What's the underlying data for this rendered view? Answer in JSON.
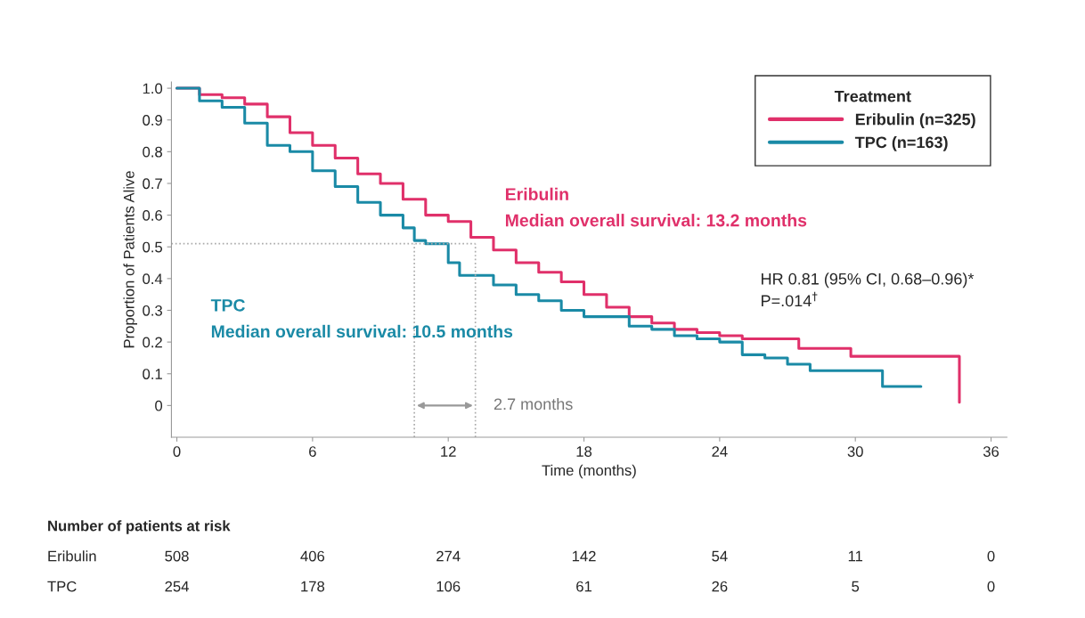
{
  "chart_data": {
    "type": "step",
    "xlabel": "Time (months)",
    "ylabel": "Proportion of Patients Alive",
    "legend_title": "Treatment",
    "series": [
      {
        "name": "Eribulin (n=325)",
        "color": "#e0306a",
        "x": [
          0,
          1,
          2,
          3,
          4,
          5,
          6,
          7,
          8,
          9,
          10,
          11,
          12,
          13,
          14,
          15,
          16,
          17,
          18,
          19,
          20,
          21,
          22,
          23,
          24,
          25,
          27.5,
          29.8,
          34.6,
          34.6
        ],
        "values": [
          1.0,
          0.98,
          0.97,
          0.95,
          0.91,
          0.86,
          0.82,
          0.78,
          0.73,
          0.7,
          0.65,
          0.6,
          0.58,
          0.53,
          0.49,
          0.45,
          0.42,
          0.39,
          0.35,
          0.31,
          0.28,
          0.26,
          0.24,
          0.23,
          0.22,
          0.21,
          0.18,
          0.155,
          0.155,
          0.01
        ]
      },
      {
        "name": "TPC (n=163)",
        "color": "#1a8aa6",
        "x": [
          0,
          1,
          2,
          3,
          4,
          5,
          6,
          7,
          8,
          9,
          10,
          10.5,
          11,
          12,
          12.5,
          14,
          15,
          16,
          17,
          18,
          20,
          21,
          22,
          23,
          24,
          25,
          26,
          27,
          28,
          31.2,
          32.9
        ],
        "values": [
          1.0,
          0.96,
          0.94,
          0.89,
          0.82,
          0.8,
          0.74,
          0.69,
          0.64,
          0.6,
          0.56,
          0.52,
          0.51,
          0.45,
          0.41,
          0.38,
          0.35,
          0.33,
          0.3,
          0.28,
          0.25,
          0.24,
          0.22,
          0.21,
          0.2,
          0.16,
          0.15,
          0.13,
          0.11,
          0.06,
          0.06
        ]
      }
    ],
    "xlim": [
      -0.24,
      36.7
    ],
    "ylim": [
      -0.1,
      1.02
    ],
    "xticks": [
      0,
      6,
      12,
      18,
      24,
      30,
      36
    ],
    "yticks": [
      0,
      0.1,
      0.2,
      0.3,
      0.4,
      0.5,
      0.6,
      0.7,
      0.8,
      0.9,
      {
        "value": 1.0,
        "label": "1.0"
      }
    ],
    "ref_lines": [
      {
        "axis": "y",
        "value": 0.51,
        "color": "#aaaaaa",
        "line_style": "dotted"
      },
      {
        "axis": "x",
        "value": 10.5,
        "color": "#aaaaaa",
        "line_style": "dotted"
      },
      {
        "axis": "x",
        "value": 13.2,
        "color": "#aaaaaa",
        "line_style": "dotted"
      }
    ],
    "annotations": [
      "Eribulin\nMedian overall survival: 13.2 months",
      "TPC\nMedian overall survival: 10.5 months",
      "2.7 months",
      "HR 0.81 (95% CI, 0.68–0.96)*\nP=.014$^{†}$",
      "Number of patients at risk",
      "Eribulin",
      "508",
      "406",
      "274",
      "142",
      "54",
      "11",
      "0",
      "TPC",
      "254",
      "178",
      "106",
      "61",
      "26",
      "5",
      "0"
    ],
    "legend": "top right",
    "grid": false,
    "marker": "none",
    "line_style": "solid"
  }
}
